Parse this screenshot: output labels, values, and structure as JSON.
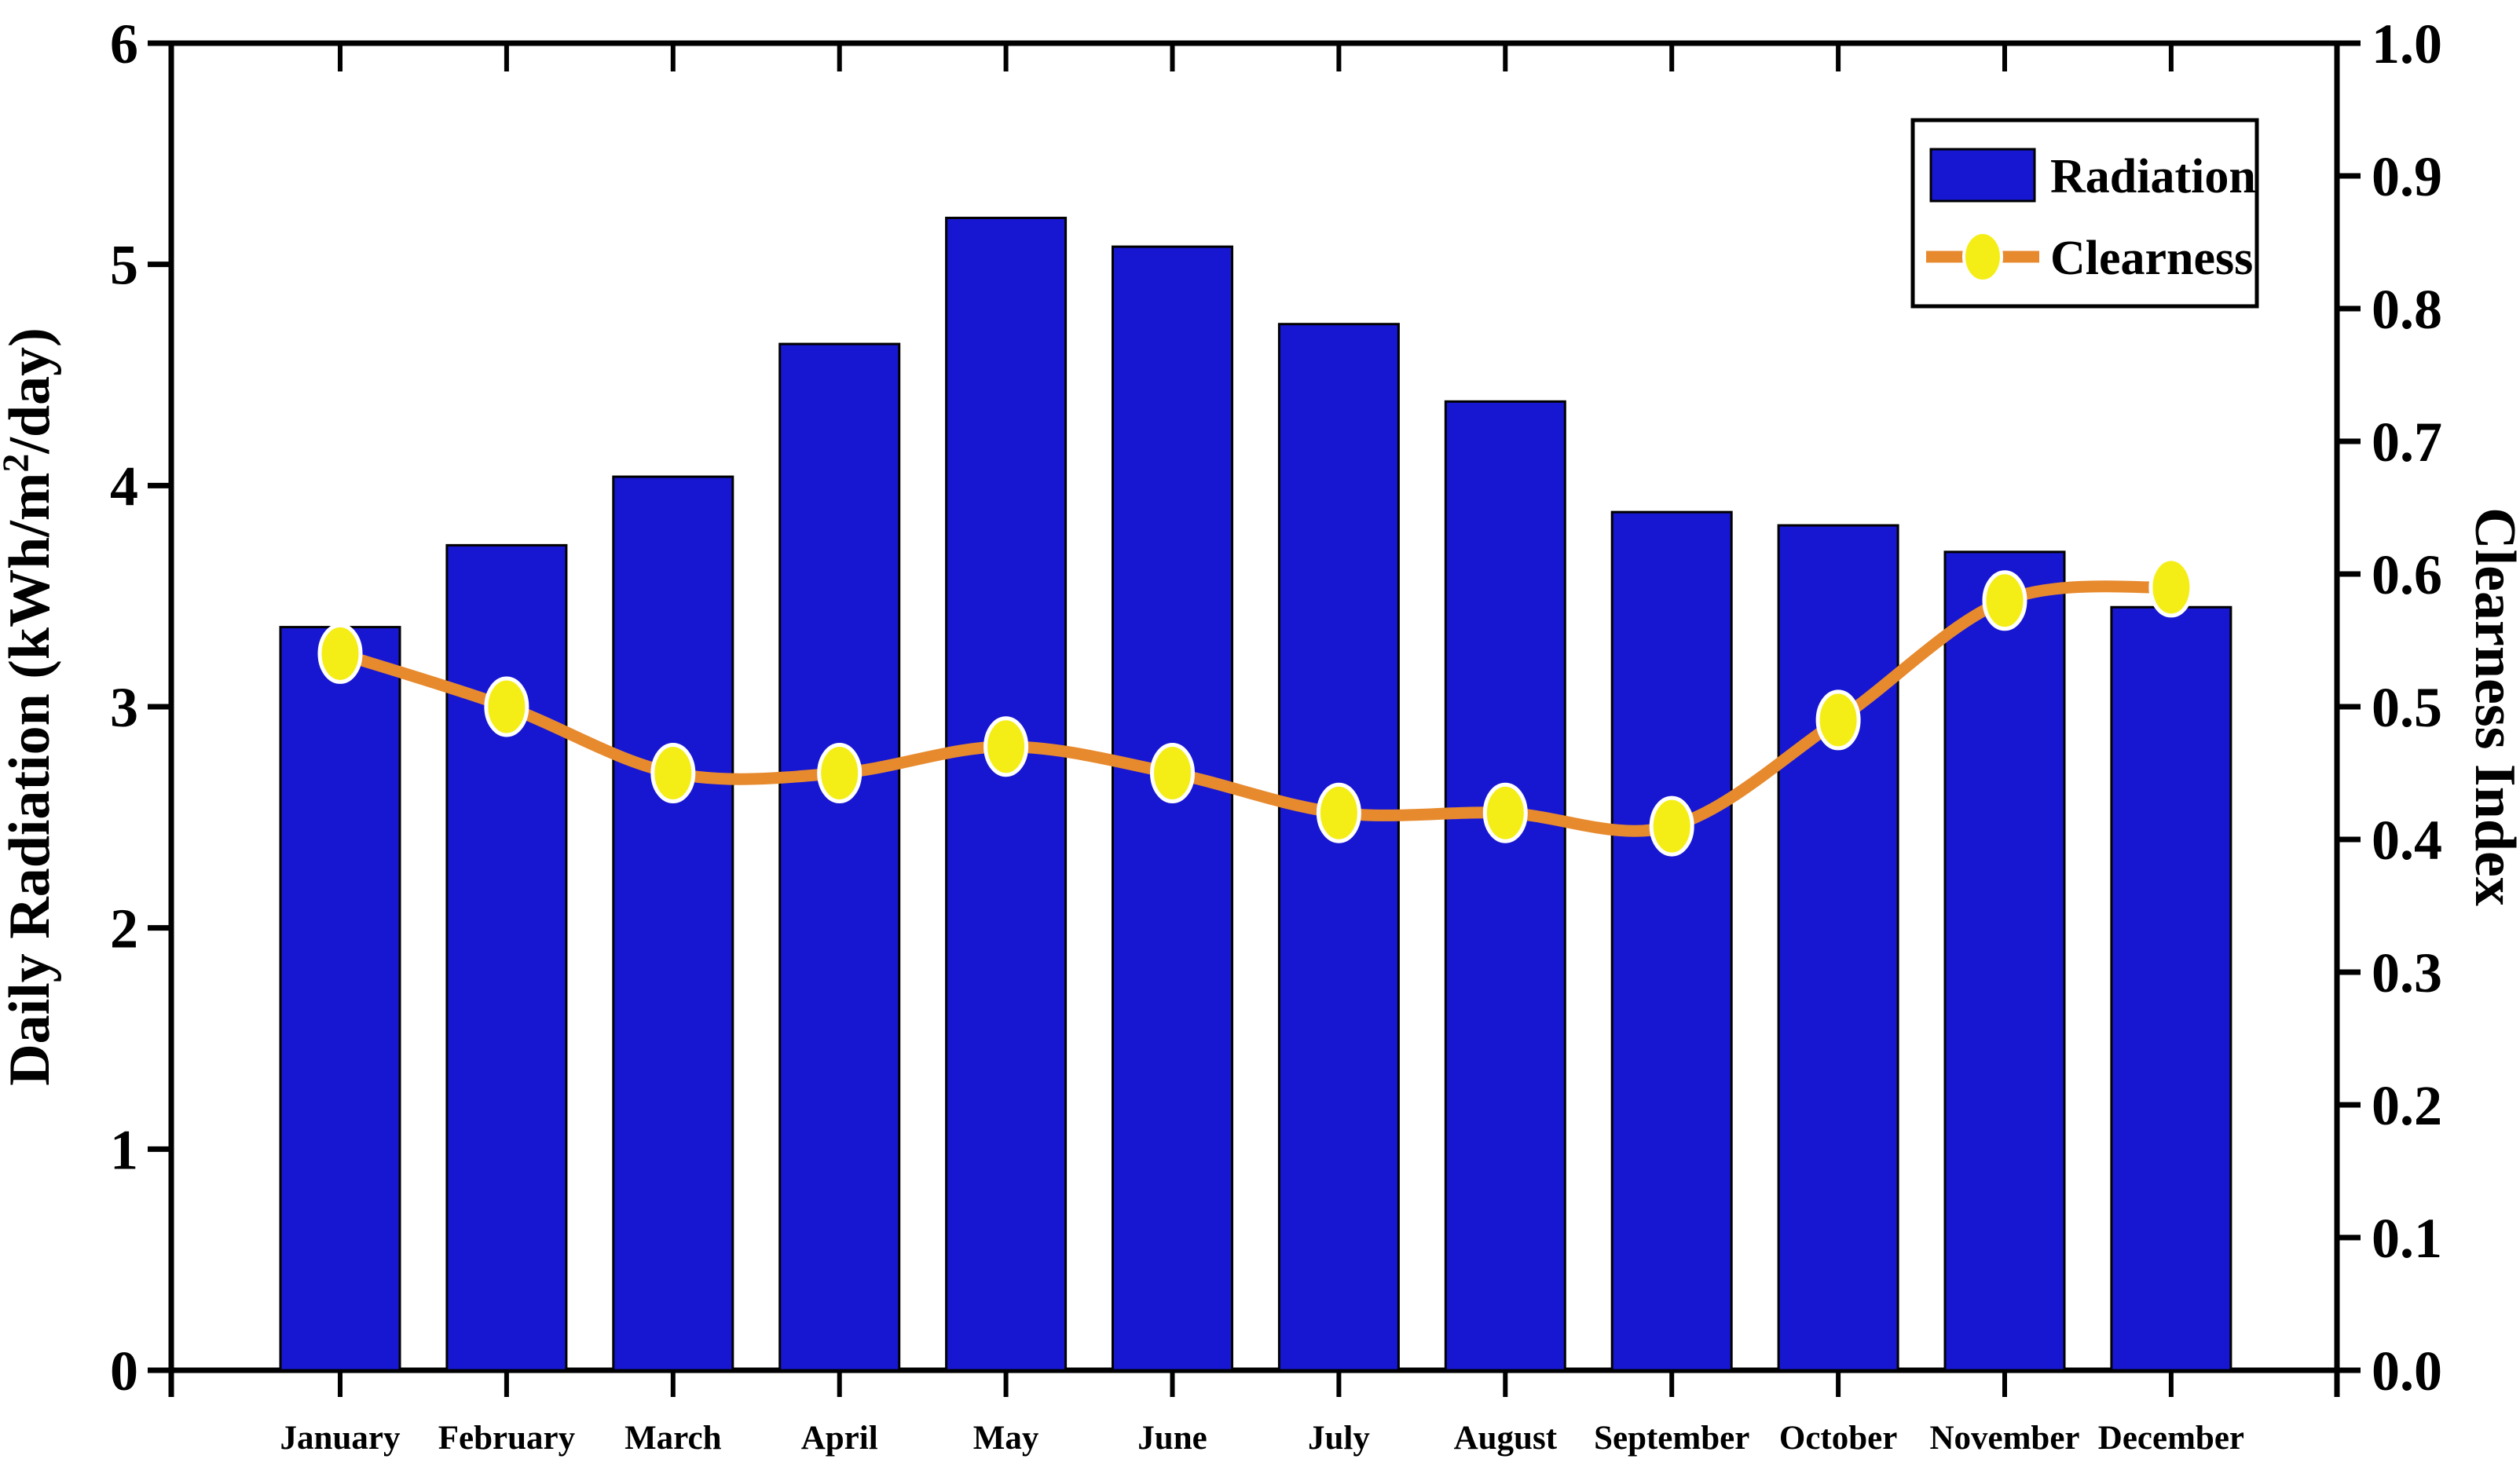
{
  "figure": {
    "background": "#ffffff",
    "left_axis": {
      "title_prefix": "Daily Radiation (kWh/m",
      "title_sup": "2",
      "title_suffix": "/day)",
      "ticks": [
        "0",
        "1",
        "2",
        "3",
        "4",
        "5",
        "6"
      ]
    },
    "right_axis": {
      "title": "Clearness Index",
      "ticks": [
        "0.0",
        "0.1",
        "0.2",
        "0.3",
        "0.4",
        "0.5",
        "0.6",
        "0.7",
        "0.8",
        "0.9",
        "1.0"
      ]
    },
    "legend": {
      "radiation_label": "Radiation",
      "clearness_label": "Clearness"
    },
    "colors": {
      "bar_fill": "#1717d1",
      "bar_edge": "#000000",
      "line": "#e78a2e",
      "marker_fill": "#f5ee16",
      "marker_edge": "#ffffff",
      "axis": "#000000",
      "legend_border": "#000000"
    }
  },
  "chart_data": {
    "type": "bar+line",
    "categories": [
      "January",
      "February",
      "March",
      "April",
      "May",
      "June",
      "July",
      "August",
      "September",
      "October",
      "November",
      "December"
    ],
    "series": [
      {
        "name": "Radiation",
        "type": "bar",
        "y_axis": "left",
        "values": [
          3.36,
          3.73,
          4.04,
          4.64,
          5.21,
          5.08,
          4.73,
          4.38,
          3.88,
          3.82,
          3.7,
          3.45
        ]
      },
      {
        "name": "Clearness",
        "type": "line",
        "y_axis": "right",
        "values": [
          0.54,
          0.5,
          0.45,
          0.45,
          0.47,
          0.45,
          0.42,
          0.42,
          0.41,
          0.49,
          0.58,
          0.59
        ]
      }
    ],
    "left_ylabel": "Daily Radiation (kWh/m²/day)",
    "right_ylabel": "Clearness Index",
    "xlabel": "",
    "title": "",
    "left_ylim": [
      0,
      6
    ],
    "left_tick_step": 1,
    "right_ylim": [
      0.0,
      1.0
    ],
    "right_tick_step": 0.1,
    "grid": false,
    "legend_position": "top-right"
  }
}
